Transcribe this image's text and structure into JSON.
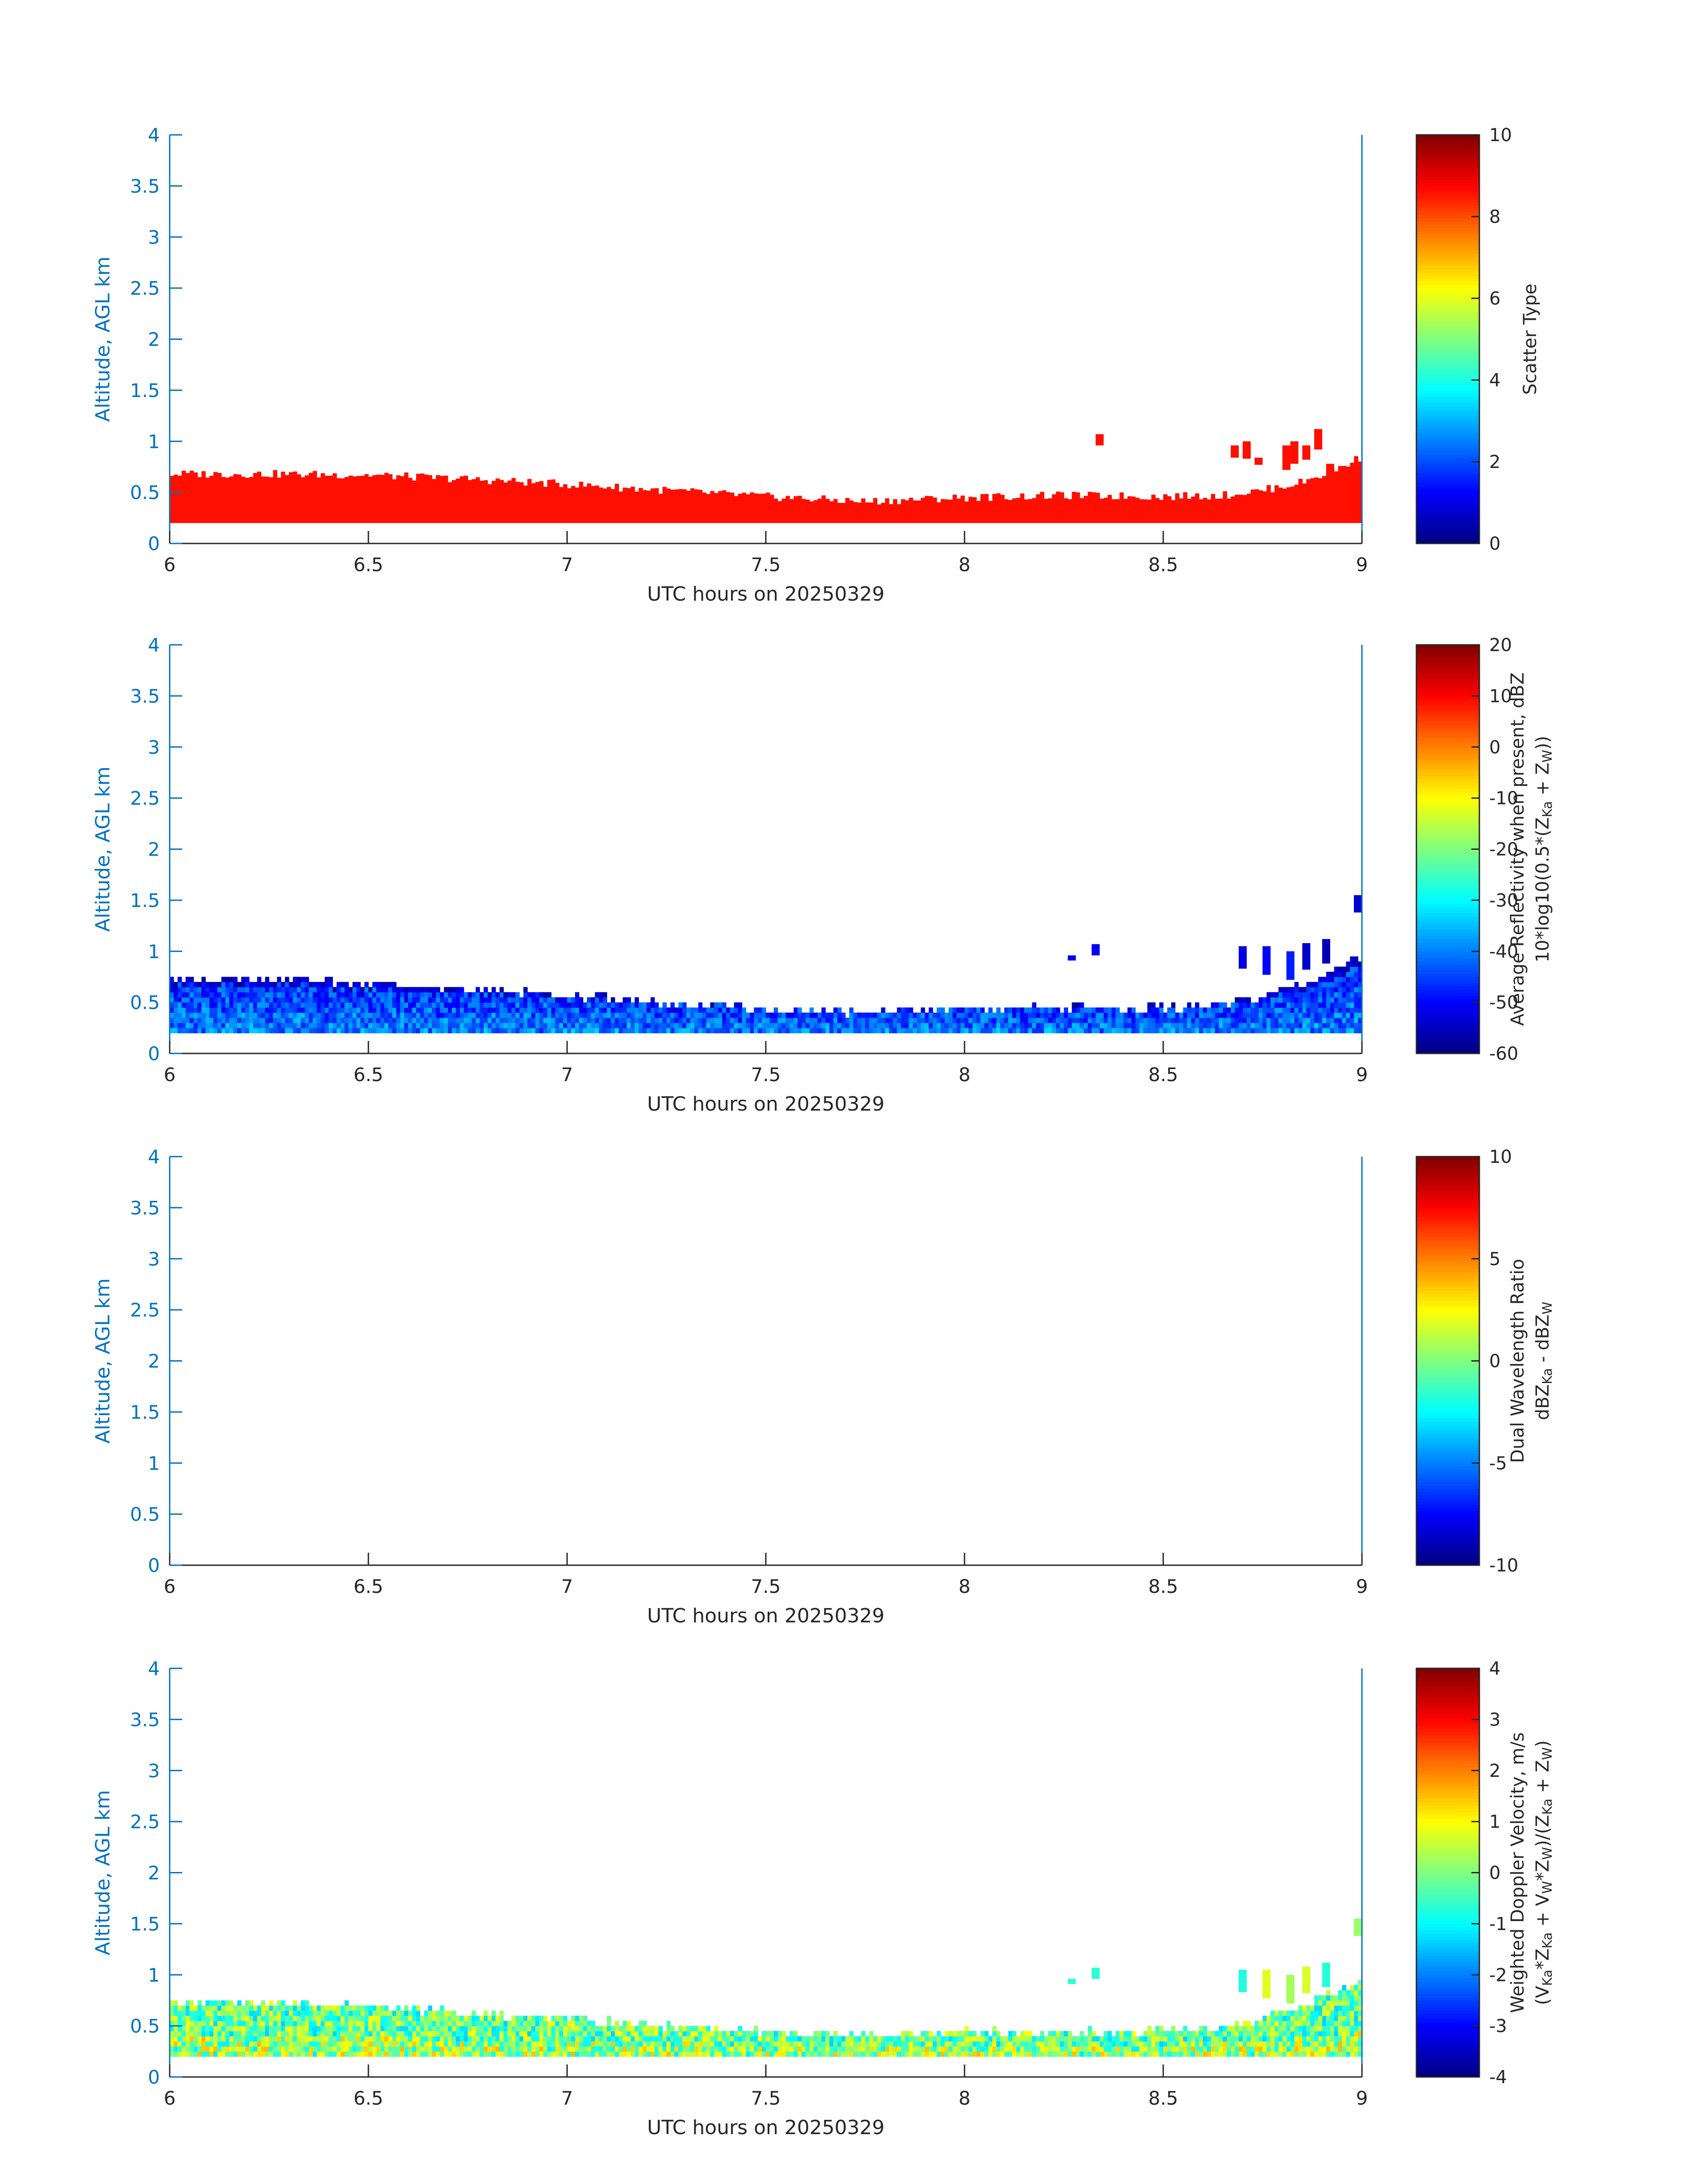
{
  "figure": {
    "date": "20250329"
  },
  "colormap": "jet",
  "chart_data": [
    {
      "type": "heatmap",
      "title": "",
      "xlabel": "UTC hours on 20250329",
      "ylabel": "Altitude, AGL km",
      "xlim": [
        6,
        9
      ],
      "ylim": [
        0,
        4
      ],
      "xticks": [
        6,
        6.5,
        7,
        7.5,
        8,
        8.5,
        9
      ],
      "xtick_labels": [
        "6",
        "6.5",
        "7",
        "7.5",
        "8",
        "8.5",
        "9"
      ],
      "yticks": [
        0,
        0.5,
        1,
        1.5,
        2,
        2.5,
        3,
        3.5,
        4
      ],
      "ytick_labels": [
        "0",
        "0.5",
        "1",
        "1.5",
        "2",
        "2.5",
        "3",
        "3.5",
        "4"
      ],
      "colorbar": {
        "label_lines": [
          "Scatter Type"
        ],
        "range": [
          0,
          10
        ],
        "ticks": [
          0,
          2,
          4,
          6,
          8,
          10
        ],
        "tick_labels": [
          "0",
          "2",
          "4",
          "6",
          "8",
          "10"
        ]
      },
      "field": "scatter_type",
      "value": 8.6,
      "echo_base_km": 0.2,
      "echo_top_km": {
        "hours": [
          6.0,
          6.25,
          6.5,
          6.75,
          7.0,
          7.25,
          7.5,
          7.75,
          8.0,
          8.25,
          8.5,
          8.65,
          8.75,
          8.85,
          8.95,
          9.0
        ],
        "km": [
          0.68,
          0.68,
          0.67,
          0.63,
          0.58,
          0.52,
          0.46,
          0.41,
          0.45,
          0.47,
          0.46,
          0.47,
          0.52,
          0.6,
          0.75,
          0.85
        ]
      },
      "isolated_echoes": [
        {
          "hour": 8.34,
          "km_bottom": 0.96,
          "km_top": 1.07
        },
        {
          "hour": 8.68,
          "km_bottom": 0.84,
          "km_top": 0.96
        },
        {
          "hour": 8.71,
          "km_bottom": 0.83,
          "km_top": 1.0
        },
        {
          "hour": 8.74,
          "km_bottom": 0.77,
          "km_top": 0.84
        },
        {
          "hour": 8.81,
          "km_bottom": 0.72,
          "km_top": 0.96
        },
        {
          "hour": 8.83,
          "km_bottom": 0.78,
          "km_top": 1.0
        },
        {
          "hour": 8.86,
          "km_bottom": 0.82,
          "km_top": 0.96
        },
        {
          "hour": 8.89,
          "km_bottom": 0.92,
          "km_top": 1.12
        },
        {
          "hour": 8.92,
          "km_bottom": 0.52,
          "km_top": 0.78
        }
      ]
    },
    {
      "type": "heatmap",
      "title": "",
      "xlabel": "UTC hours on 20250329",
      "ylabel": "Altitude, AGL km",
      "xlim": [
        6,
        9
      ],
      "ylim": [
        0,
        4
      ],
      "xticks": [
        6,
        6.5,
        7,
        7.5,
        8,
        8.5,
        9
      ],
      "xtick_labels": [
        "6",
        "6.5",
        "7",
        "7.5",
        "8",
        "8.5",
        "9"
      ],
      "yticks": [
        0,
        0.5,
        1,
        1.5,
        2,
        2.5,
        3,
        3.5,
        4
      ],
      "ytick_labels": [
        "0",
        "0.5",
        "1",
        "1.5",
        "2",
        "2.5",
        "3",
        "3.5",
        "4"
      ],
      "colorbar": {
        "label_lines": [
          "Average Reflectivity when present, dBZ",
          "10*log10(0.5*(Z_Ka + Z_W))"
        ],
        "range": [
          -60,
          20
        ],
        "ticks": [
          -60,
          -50,
          -40,
          -30,
          -20,
          -10,
          0,
          10,
          20
        ],
        "tick_labels": [
          "-60",
          "-50",
          "-40",
          "-30",
          "-20",
          "-10",
          "0",
          "10",
          "20"
        ]
      },
      "field": "reflectivity",
      "typical_range_dbz": [
        -55,
        -33
      ],
      "echo_base_km": 0.2,
      "echo_top_km": {
        "hours": [
          6.0,
          6.25,
          6.5,
          6.75,
          7.0,
          7.25,
          7.5,
          7.75,
          8.0,
          8.25,
          8.5,
          8.65,
          8.75,
          8.85,
          8.95,
          9.0
        ],
        "km": [
          0.76,
          0.76,
          0.72,
          0.65,
          0.6,
          0.52,
          0.47,
          0.43,
          0.47,
          0.47,
          0.47,
          0.5,
          0.6,
          0.72,
          0.9,
          0.95
        ]
      },
      "isolated_echoes": [
        {
          "hour": 8.27,
          "km_bottom": 0.91,
          "km_top": 0.96
        },
        {
          "hour": 8.33,
          "km_bottom": 0.96,
          "km_top": 1.07
        },
        {
          "hour": 8.7,
          "km_bottom": 0.83,
          "km_top": 1.05
        },
        {
          "hour": 8.76,
          "km_bottom": 0.77,
          "km_top": 1.05
        },
        {
          "hour": 8.82,
          "km_bottom": 0.72,
          "km_top": 1.0
        },
        {
          "hour": 8.86,
          "km_bottom": 0.82,
          "km_top": 1.08
        },
        {
          "hour": 8.91,
          "km_bottom": 0.88,
          "km_top": 1.12
        },
        {
          "hour": 9.0,
          "km_bottom": 1.38,
          "km_top": 1.55
        }
      ]
    },
    {
      "type": "heatmap",
      "title": "",
      "xlabel": "UTC hours on 20250329",
      "ylabel": "Altitude, AGL km",
      "xlim": [
        6,
        9
      ],
      "ylim": [
        0,
        4
      ],
      "xticks": [
        6,
        6.5,
        7,
        7.5,
        8,
        8.5,
        9
      ],
      "xtick_labels": [
        "6",
        "6.5",
        "7",
        "7.5",
        "8",
        "8.5",
        "9"
      ],
      "yticks": [
        0,
        0.5,
        1,
        1.5,
        2,
        2.5,
        3,
        3.5,
        4
      ],
      "ytick_labels": [
        "0",
        "0.5",
        "1",
        "1.5",
        "2",
        "2.5",
        "3",
        "3.5",
        "4"
      ],
      "colorbar": {
        "label_lines": [
          "Dual Wavelength Ratio",
          "dBZ_Ka - dBZ_W"
        ],
        "range": [
          -10,
          10
        ],
        "ticks": [
          -10,
          -5,
          0,
          5,
          10
        ],
        "tick_labels": [
          "-10",
          "-5",
          "0",
          "5",
          "10"
        ]
      },
      "field": "dual_wavelength_ratio",
      "no_data": true
    },
    {
      "type": "heatmap",
      "title": "",
      "xlabel": "UTC hours on 20250329",
      "ylabel": "Altitude, AGL km",
      "xlim": [
        6,
        9
      ],
      "ylim": [
        0,
        4
      ],
      "xticks": [
        6,
        6.5,
        7,
        7.5,
        8,
        8.5,
        9
      ],
      "xtick_labels": [
        "6",
        "6.5",
        "7",
        "7.5",
        "8",
        "8.5",
        "9"
      ],
      "yticks": [
        0,
        0.5,
        1,
        1.5,
        2,
        2.5,
        3,
        3.5,
        4
      ],
      "ytick_labels": [
        "0",
        "0.5",
        "1",
        "1.5",
        "2",
        "2.5",
        "3",
        "3.5",
        "4"
      ],
      "colorbar": {
        "label_lines": [
          "Weighted Doppler Velocity, m/s",
          "(V_Ka*Z_Ka + V_W*Z_W)/(Z_Ka + Z_W)"
        ],
        "range": [
          -4,
          4
        ],
        "ticks": [
          -4,
          -3,
          -2,
          -1,
          0,
          1,
          2,
          3,
          4
        ],
        "tick_labels": [
          "-4",
          "-3",
          "-2",
          "-1",
          "0",
          "1",
          "2",
          "3",
          "4"
        ]
      },
      "field": "doppler_velocity",
      "typical_range_ms": [
        -1.3,
        1.3
      ],
      "echo_base_km": 0.2,
      "echo_top_km": {
        "hours": [
          6.0,
          6.25,
          6.5,
          6.75,
          7.0,
          7.25,
          7.5,
          7.75,
          8.0,
          8.25,
          8.5,
          8.65,
          8.75,
          8.85,
          8.95,
          9.0
        ],
        "km": [
          0.76,
          0.76,
          0.72,
          0.65,
          0.6,
          0.52,
          0.47,
          0.43,
          0.47,
          0.47,
          0.47,
          0.5,
          0.6,
          0.72,
          0.9,
          0.95
        ]
      },
      "isolated_echoes": [
        {
          "hour": 8.27,
          "km_bottom": 0.91,
          "km_top": 0.96
        },
        {
          "hour": 8.33,
          "km_bottom": 0.96,
          "km_top": 1.07
        },
        {
          "hour": 8.7,
          "km_bottom": 0.83,
          "km_top": 1.05
        },
        {
          "hour": 8.76,
          "km_bottom": 0.77,
          "km_top": 1.05
        },
        {
          "hour": 8.82,
          "km_bottom": 0.72,
          "km_top": 1.0
        },
        {
          "hour": 8.86,
          "km_bottom": 0.82,
          "km_top": 1.08
        },
        {
          "hour": 8.91,
          "km_bottom": 0.88,
          "km_top": 1.12
        },
        {
          "hour": 9.0,
          "km_bottom": 1.38,
          "km_top": 1.55
        }
      ]
    }
  ]
}
